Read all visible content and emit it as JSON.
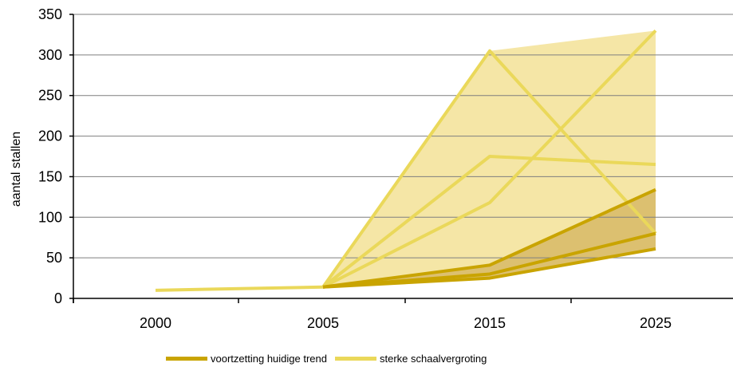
{
  "chart_data": {
    "type": "line",
    "ylabel": "aantal stallen",
    "xlabel": "",
    "categories": [
      "2000",
      "2005",
      "2015",
      "2025"
    ],
    "ylim": [
      0,
      350
    ],
    "yticks": [
      0,
      50,
      100,
      150,
      200,
      250,
      300,
      350
    ],
    "grid": true,
    "legend_position": "bottom",
    "series": [
      {
        "name": "",
        "group": "sterke schaalvergroting",
        "values": [
          10,
          14,
          null,
          null
        ]
      },
      {
        "name": "",
        "group": "sterke schaalvergroting",
        "values": [
          null,
          14,
          305,
          80
        ]
      },
      {
        "name": "",
        "group": "sterke schaalvergroting",
        "values": [
          null,
          14,
          175,
          165
        ]
      },
      {
        "name": "",
        "group": "sterke schaalvergroting",
        "values": [
          null,
          14,
          118,
          330
        ]
      },
      {
        "name": "",
        "group": "voortzetting huidige trend",
        "values": [
          null,
          14,
          41,
          134
        ]
      },
      {
        "name": "",
        "group": "voortzetting huidige trend",
        "values": [
          null,
          14,
          30,
          80
        ]
      },
      {
        "name": "",
        "group": "voortzetting huidige trend",
        "values": [
          null,
          14,
          25,
          61
        ]
      }
    ],
    "bands": [
      {
        "group": "sterke schaalvergroting",
        "lower": [
          null,
          14,
          25,
          61
        ],
        "upper": [
          null,
          14,
          305,
          330
        ]
      },
      {
        "group": "voortzetting huidige trend",
        "lower": [
          null,
          14,
          25,
          61
        ],
        "upper": [
          null,
          14,
          41,
          134
        ]
      }
    ],
    "legend": [
      {
        "label": "voortzetting huidige trend",
        "color": "#c9a400"
      },
      {
        "label": "sterke schaalvergroting",
        "color": "#ead85a"
      }
    ],
    "colors": {
      "trend_line": "#c9a400",
      "trend_band": "#dcc070",
      "strong_line": "#ead85a",
      "strong_band": "#f5e6a6",
      "grid": "#7f7f7f"
    }
  }
}
